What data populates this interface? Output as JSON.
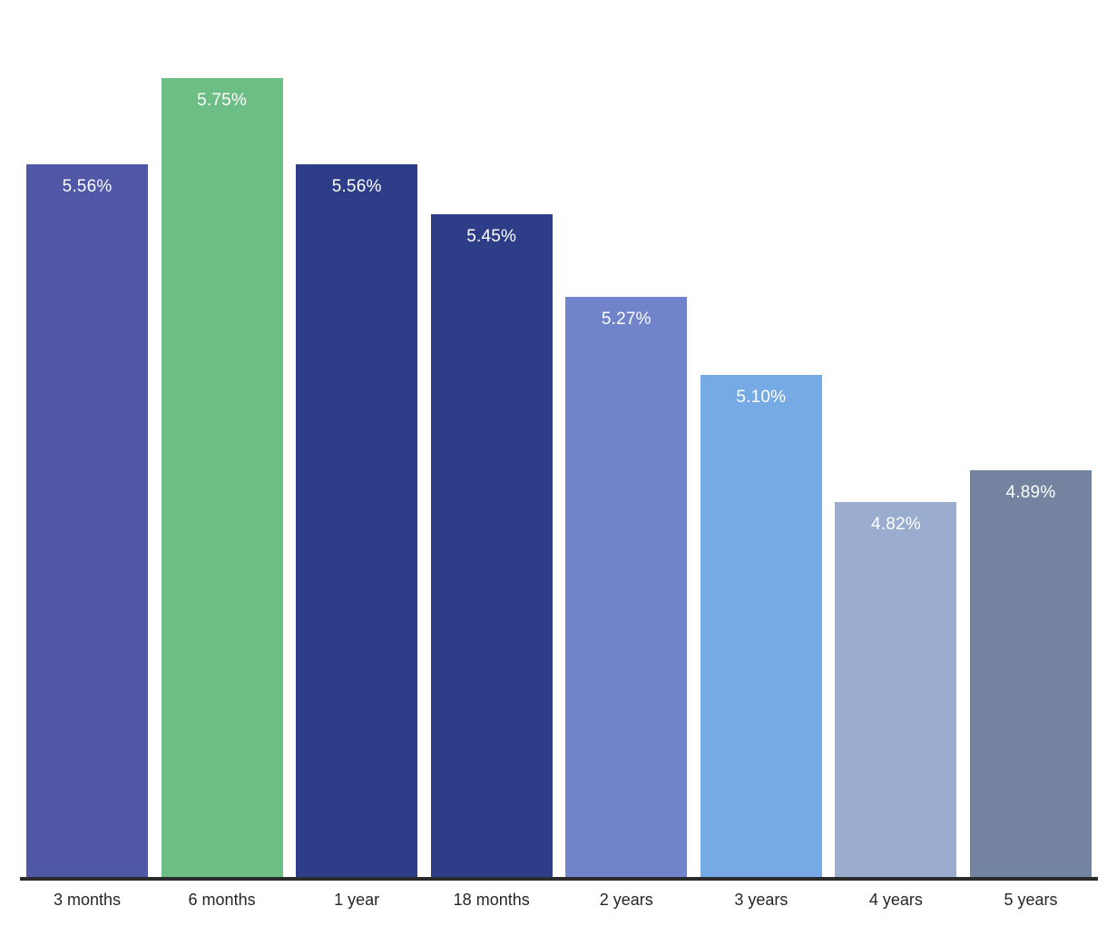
{
  "chart_data": {
    "type": "bar",
    "title": "",
    "xlabel": "",
    "ylabel": "",
    "categories": [
      "3 months",
      "6 months",
      "1 year",
      "18 months",
      "2 years",
      "3 years",
      "4 years",
      "5 years"
    ],
    "values": [
      5.56,
      5.75,
      5.56,
      5.45,
      5.27,
      5.1,
      4.82,
      4.89
    ],
    "value_labels": [
      "5.56%",
      "5.75%",
      "5.56%",
      "5.45%",
      "5.27%",
      "5.10%",
      "4.82%",
      "4.89%"
    ],
    "bar_colors": [
      "#4f57a6",
      "#6cbe84",
      "#2e3d87",
      "#2e3d87",
      "#7183ca",
      "#76aae4",
      "#9badce",
      "#74839f"
    ],
    "ylim": [
      4.0,
      5.92
    ],
    "grid": false,
    "legend": null,
    "value_label_color": "#ffffff",
    "axis_label_color": "#262626",
    "axis_line_color": "#2b2b2b",
    "background": "#ffffff"
  }
}
